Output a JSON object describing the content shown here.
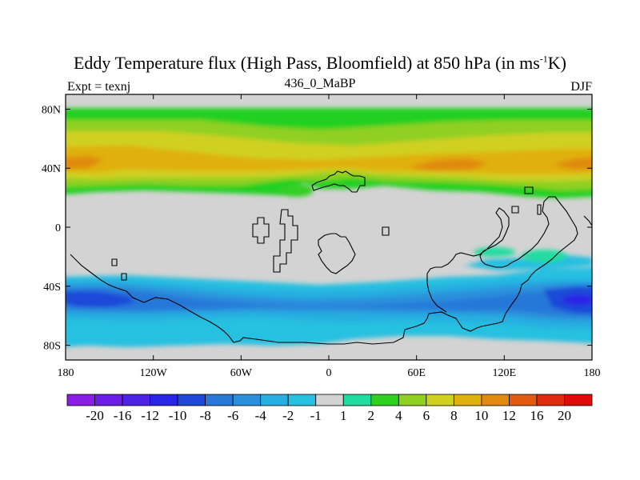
{
  "title": {
    "main": "Eddy Temperature flux (High Pass, Bloomfield) at 850 hPa (in ms",
    "sup": "-1",
    "end": "K)"
  },
  "subtitle_left": "Expt = texnj",
  "subtitle_center": "436_0_MaBP",
  "subtitle_right": "DJF",
  "map": {
    "lat_ticks": [
      "80N",
      "40N",
      "0",
      "40S",
      "80S"
    ],
    "lat_values": [
      80,
      40,
      0,
      -40,
      -80
    ],
    "lon_ticks": [
      "180",
      "120W",
      "60W",
      "0",
      "60E",
      "120E",
      "180"
    ],
    "lon_values": [
      -180,
      -120,
      -60,
      0,
      60,
      120,
      180
    ],
    "missing_color": "#d3d3d3"
  },
  "colorbar": {
    "labels": [
      "-20",
      "-16",
      "-12",
      "-10",
      "-8",
      "-6",
      "-4",
      "-2",
      "-1",
      "1",
      "2",
      "4",
      "6",
      "8",
      "10",
      "12",
      "16",
      "20"
    ],
    "colors": [
      "#8a1de6",
      "#6a1ee6",
      "#4d23e6",
      "#2a24e6",
      "#1e48d8",
      "#2878d8",
      "#2a90dc",
      "#28aee0",
      "#28c0e0",
      "#d3d3d3",
      "#20dca0",
      "#30d020",
      "#90d020",
      "#d0d020",
      "#e0b010",
      "#e08a10",
      "#e05a10",
      "#e02a10",
      "#e00a0a"
    ]
  }
}
